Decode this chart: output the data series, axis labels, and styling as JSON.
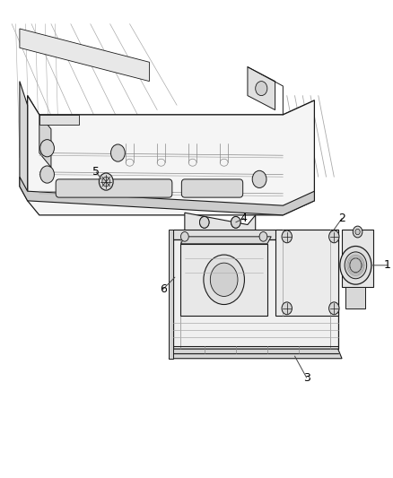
{
  "bg_color": "#ffffff",
  "line_color": "#1a1a1a",
  "gray_light": "#cccccc",
  "gray_mid": "#aaaaaa",
  "gray_dark": "#666666",
  "label_color": "#000000",
  "callout_color": "#444444",
  "figsize": [
    4.38,
    5.33
  ],
  "dpi": 100
}
